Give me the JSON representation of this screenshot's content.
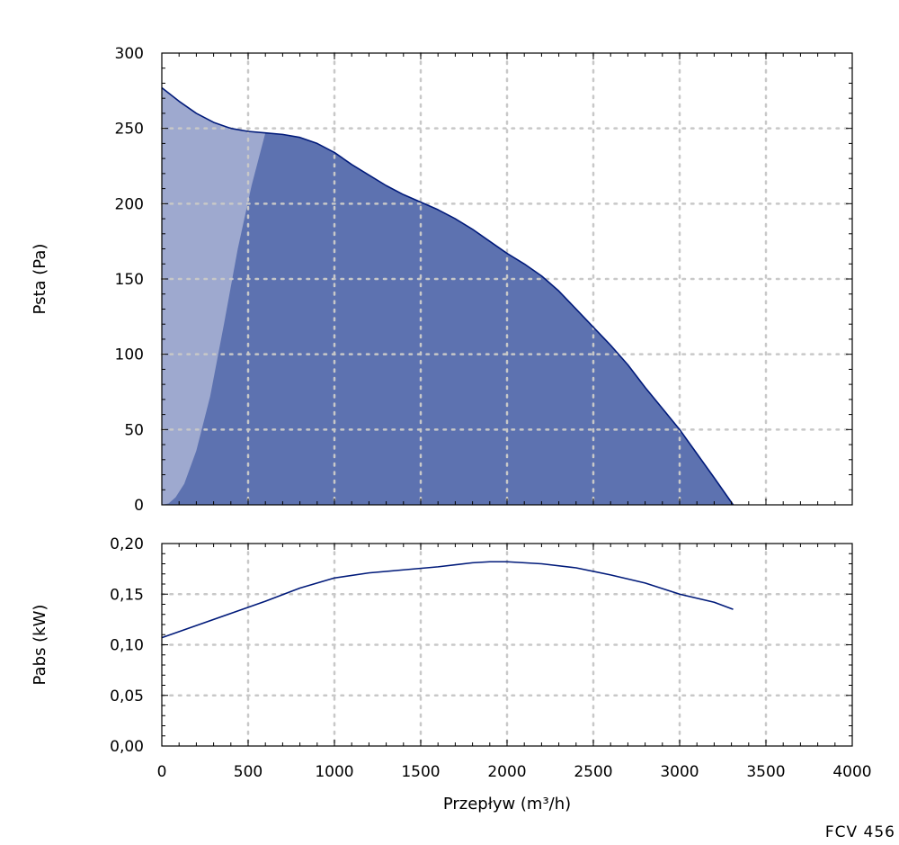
{
  "model_label": "FCV 456",
  "colors": {
    "operating_area": "#5d72b0",
    "left_area": "#9ea9cf",
    "curve_line": "#001a7a",
    "grid": "#c8c8c8",
    "axis": "#000000"
  },
  "chart_data": [
    {
      "type": "area",
      "ylabel": "Psta (Pa)",
      "xlim": [
        0,
        4000
      ],
      "ylim": [
        0,
        300
      ],
      "x_ticks": [
        "0",
        "500",
        "1000",
        "1500",
        "2000",
        "2500",
        "3000",
        "3500",
        "4000"
      ],
      "y_ticks": [
        "0",
        "50",
        "100",
        "150",
        "200",
        "250",
        "300"
      ],
      "grid": true,
      "series": [
        {
          "x": [
            0,
            100,
            200,
            300,
            400,
            500,
            600,
            700,
            800,
            900,
            1000,
            1100,
            1200,
            1300,
            1400,
            1500,
            1600,
            1700,
            1800,
            1900,
            2000,
            2100,
            2200,
            2300,
            2400,
            2500,
            2600,
            2700,
            2800,
            2900,
            3000,
            3100,
            3200,
            3310
          ],
          "values": [
            277,
            268,
            260,
            254,
            250,
            248,
            247,
            246,
            244,
            240,
            234,
            226,
            219,
            212,
            206,
            201,
            196,
            190,
            183,
            175,
            167,
            160,
            152,
            142,
            130,
            118,
            106,
            93,
            78,
            64,
            50,
            34,
            18,
            0
          ]
        }
      ],
      "boundary_curve": {
        "x": [
          0,
          40,
          80,
          130,
          200,
          280,
          360,
          440,
          520,
          600
        ],
        "values": [
          0,
          1,
          5,
          14,
          36,
          72,
          120,
          170,
          212,
          247
        ]
      }
    },
    {
      "type": "line",
      "xlabel": "Przepływ (m³/h)",
      "ylabel": "Pabs (kW)",
      "xlim": [
        0,
        4000
      ],
      "ylim": [
        0,
        0.2
      ],
      "x_ticks": [
        "0",
        "500",
        "1000",
        "1500",
        "2000",
        "2500",
        "3000",
        "3500",
        "4000"
      ],
      "y_ticks": [
        "0,00",
        "0,05",
        "0,10",
        "0,15",
        "0,20"
      ],
      "grid": true,
      "series": [
        {
          "x": [
            0,
            200,
            400,
            600,
            800,
            1000,
            1200,
            1400,
            1600,
            1800,
            1900,
            2000,
            2200,
            2400,
            2600,
            2800,
            3000,
            3200,
            3310
          ],
          "values": [
            0.107,
            0.119,
            0.131,
            0.143,
            0.156,
            0.166,
            0.171,
            0.174,
            0.177,
            0.181,
            0.182,
            0.182,
            0.18,
            0.176,
            0.169,
            0.161,
            0.15,
            0.142,
            0.135
          ]
        }
      ]
    }
  ]
}
